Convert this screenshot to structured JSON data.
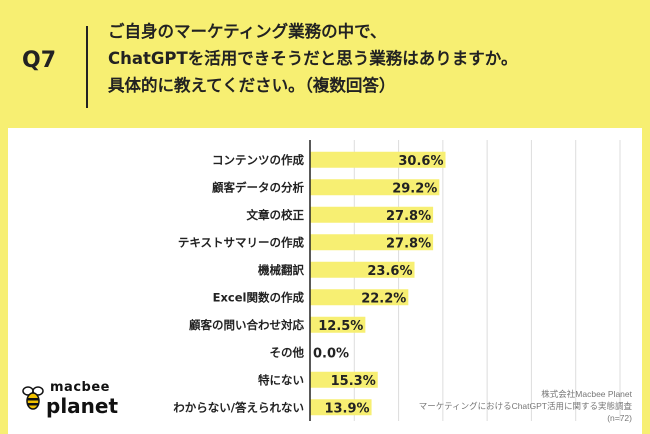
{
  "header": {
    "q_label": "Q7",
    "question_lines": [
      "ご自身のマーケティング業務の中で、",
      "ChatGPTを活用できそうだと思う業務はありますか。",
      "具体的に教えてください。（複数回答）"
    ]
  },
  "chart_data": {
    "type": "bar",
    "orientation": "horizontal",
    "categories": [
      "コンテンツの作成",
      "顧客データの分析",
      "文章の校正",
      "テキストサマリーの作成",
      "機械翻訳",
      "Excel関数の作成",
      "顧客の問い合わせ対応",
      "その他",
      "特にない",
      "わからない/答えられない"
    ],
    "values": [
      30.6,
      29.2,
      27.8,
      27.8,
      23.6,
      22.2,
      12.5,
      0.0,
      15.3,
      13.9
    ],
    "value_labels": [
      "30.6%",
      "29.2%",
      "27.8%",
      "27.8%",
      "23.6%",
      "22.2%",
      "12.5%",
      "0.0%",
      "15.3%",
      "13.9%"
    ],
    "xlim": [
      0,
      70
    ],
    "grid": true,
    "bar_color": "#f7ef72",
    "grid_color": "#dddddd"
  },
  "logo": {
    "top_text": "macbee",
    "bottom_text": "planet"
  },
  "source": {
    "lines": [
      "株式会社Macbee Planet",
      "マーケティングにおけるChatGPT活用に関する実態調査",
      "(n=72)"
    ]
  }
}
